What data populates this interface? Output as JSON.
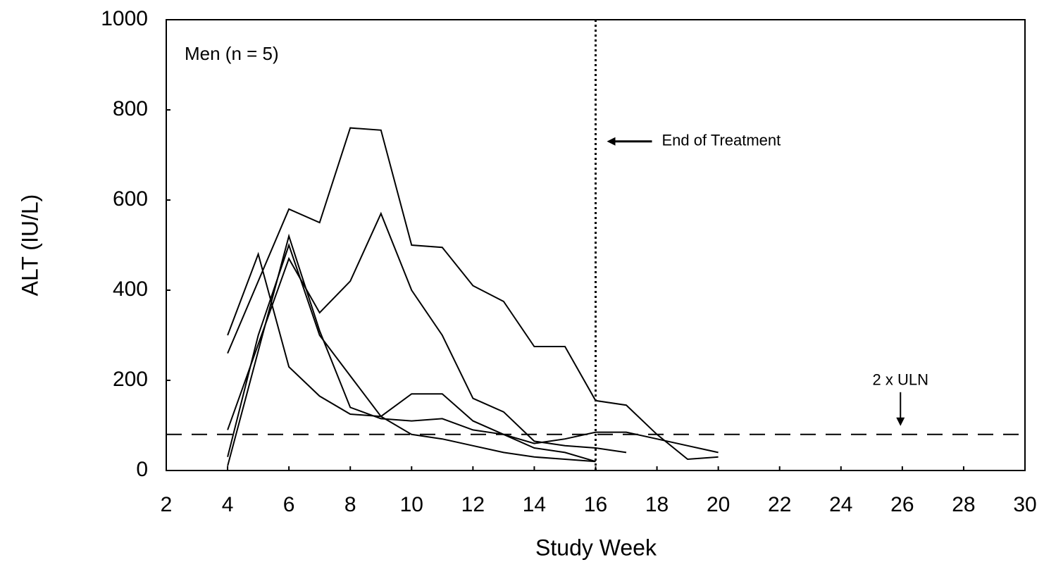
{
  "chart_data": {
    "type": "line",
    "annotation": "Men (n = 5)",
    "x_label": "Study Week",
    "y_label": "ALT (IU/L)",
    "xlim": [
      2,
      30
    ],
    "xticks": [
      2,
      4,
      6,
      8,
      10,
      12,
      14,
      16,
      18,
      20,
      22,
      24,
      26,
      28,
      30
    ],
    "ylim": [
      0,
      1000
    ],
    "yticks": [
      0,
      200,
      400,
      600,
      800,
      1000
    ],
    "reference_lines": [
      {
        "axis": "x",
        "value": 16,
        "label": "End of Treatment",
        "style": "dotted"
      },
      {
        "axis": "y",
        "value": 80,
        "label": "2 x ULN",
        "style": "dashed"
      }
    ],
    "series": [
      {
        "color": "#000000",
        "x": [
          4,
          6,
          7,
          8,
          9,
          10,
          11,
          12,
          13,
          14,
          15,
          16,
          17,
          18,
          19,
          20
        ],
        "values": [
          260,
          580,
          550,
          760,
          755,
          500,
          495,
          410,
          375,
          275,
          275,
          155,
          145,
          80,
          25,
          30
        ]
      },
      {
        "color": "#000000",
        "x": [
          4,
          5,
          6,
          7,
          8,
          9,
          10,
          11,
          12,
          13,
          14,
          15,
          16,
          17,
          18,
          19,
          20
        ],
        "values": [
          300,
          480,
          230,
          165,
          125,
          120,
          170,
          170,
          110,
          80,
          60,
          70,
          85,
          85,
          70,
          55,
          40
        ]
      },
      {
        "color": "#000000",
        "x": [
          4,
          6,
          7,
          8,
          9,
          10,
          11,
          12,
          13,
          14,
          15,
          16,
          17
        ],
        "values": [
          90,
          470,
          350,
          420,
          570,
          400,
          300,
          160,
          130,
          65,
          55,
          50,
          40
        ]
      },
      {
        "color": "#000000",
        "x": [
          4,
          6,
          7,
          8,
          9,
          10,
          11,
          12,
          13,
          14,
          15,
          16
        ],
        "values": [
          10,
          520,
          310,
          140,
          115,
          110,
          115,
          90,
          80,
          50,
          40,
          20
        ]
      },
      {
        "color": "#000000",
        "x": [
          4,
          5,
          6,
          7,
          8,
          9,
          10,
          11,
          12,
          13,
          14,
          15,
          16
        ],
        "values": [
          30,
          300,
          500,
          300,
          210,
          120,
          80,
          70,
          55,
          40,
          30,
          25,
          20
        ]
      }
    ]
  }
}
